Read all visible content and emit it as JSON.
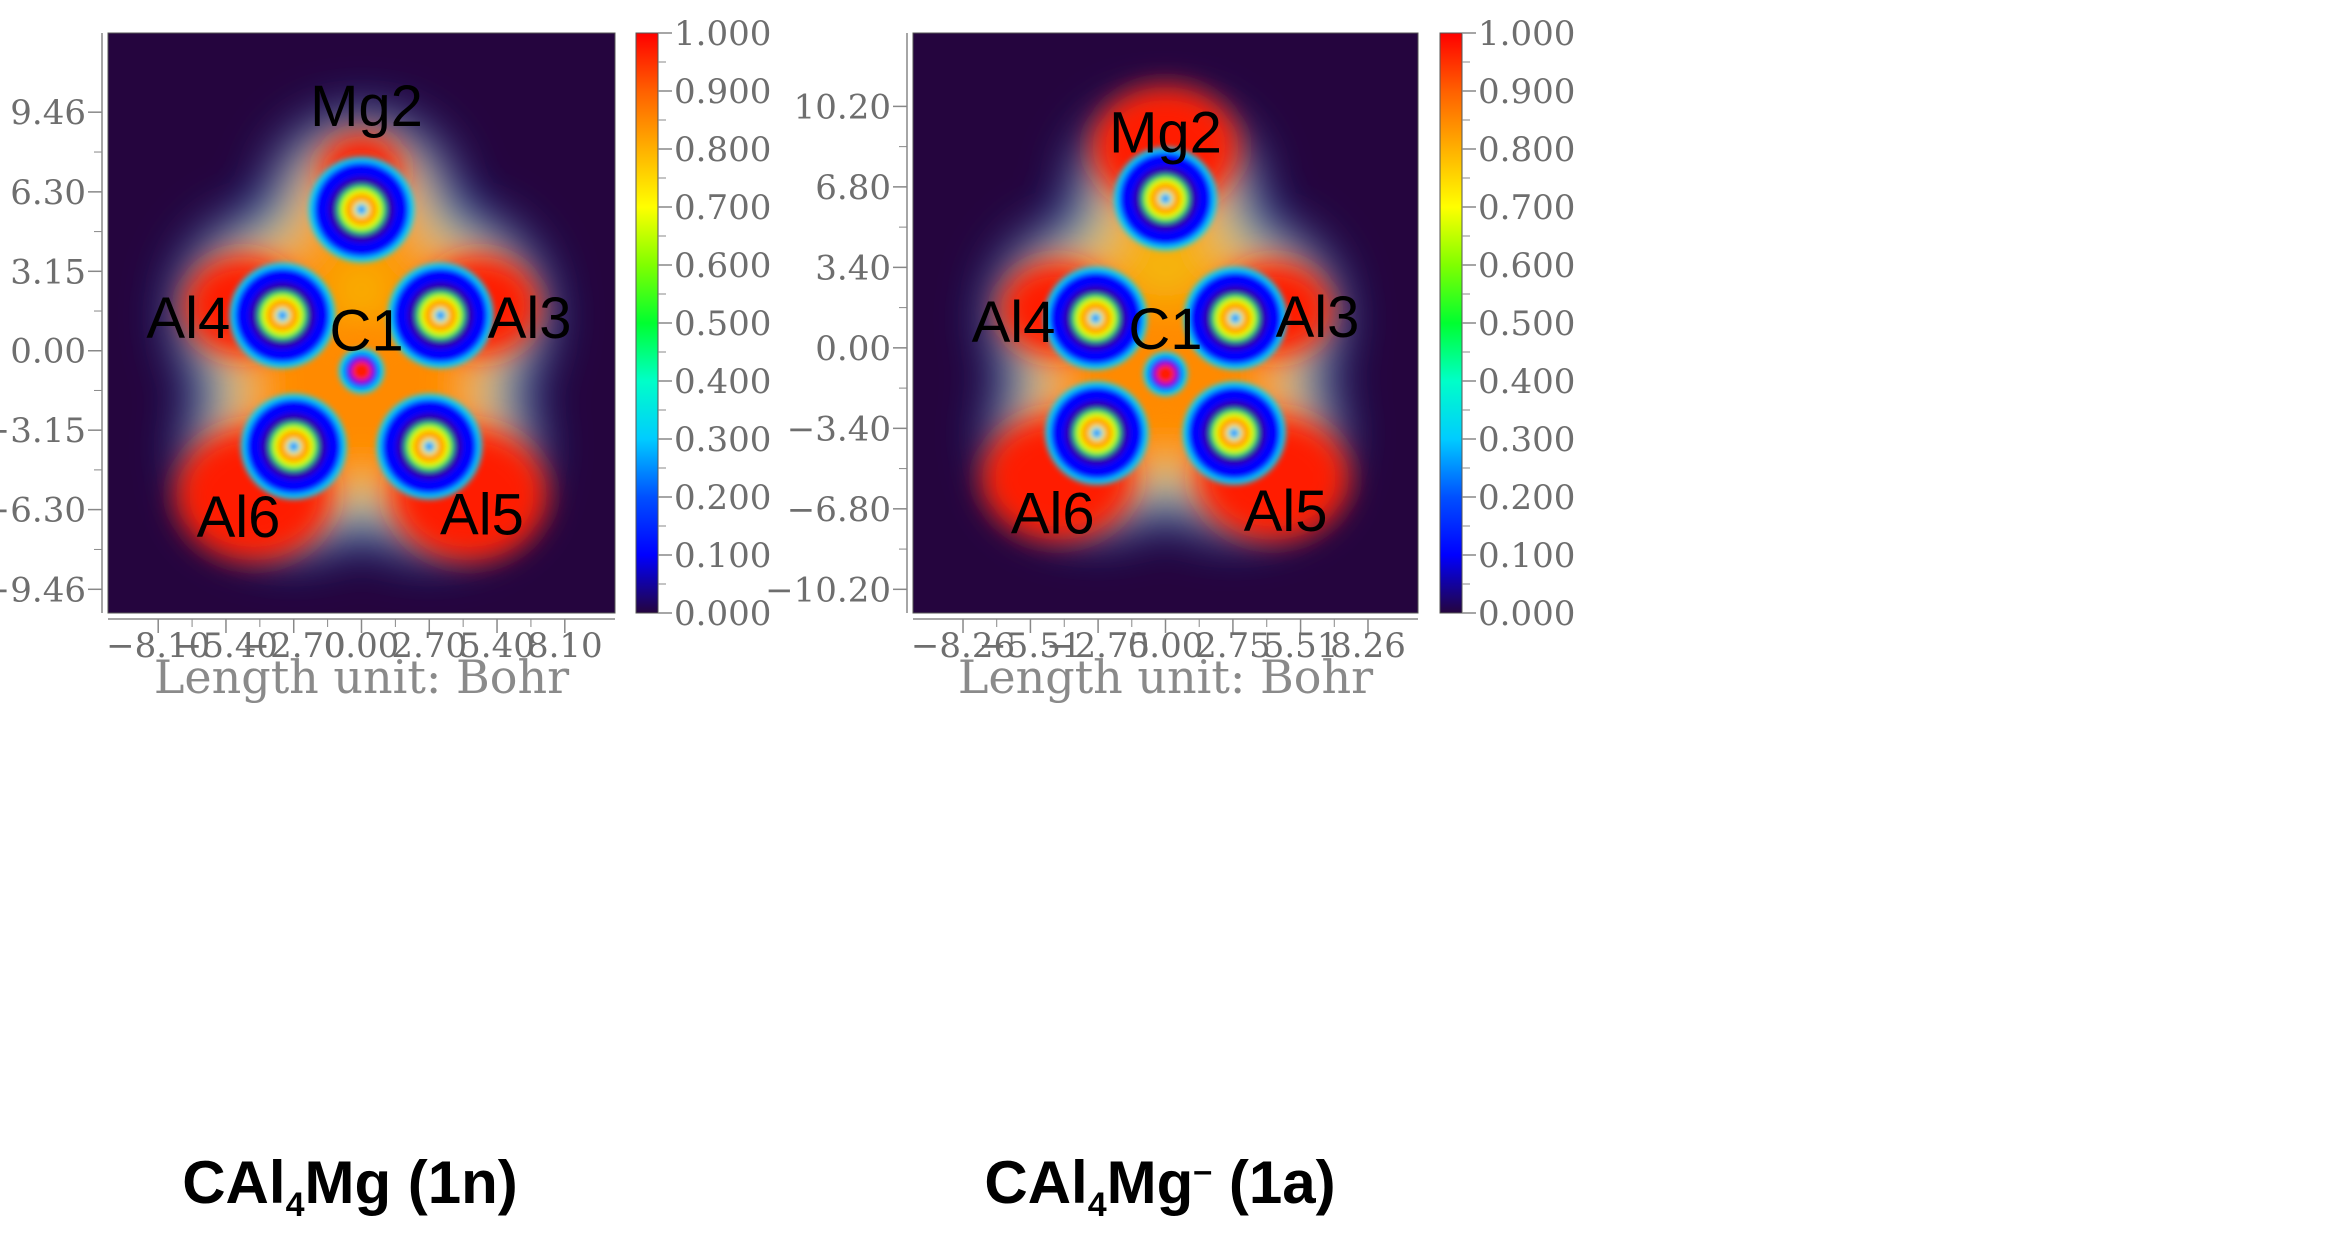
{
  "chart_data": [
    {
      "type": "heatmap",
      "caption": {
        "formula": "CAl",
        "sub": "4",
        "tail": "Mg",
        "sup": "",
        "label": " (1n)"
      },
      "xlabel": "Length unit: Bohr",
      "x_ticks": [
        "-8.10",
        "-5.40",
        "-2.70",
        "0.00",
        "2.70",
        "5.40",
        "8.10"
      ],
      "x_tick_values": [
        -8.1,
        -5.4,
        -2.7,
        0.0,
        2.7,
        5.4,
        8.1
      ],
      "xlim": [
        -10.1,
        10.1
      ],
      "y_ticks": [
        "9.46",
        "6.30",
        "3.15",
        "0.00",
        "-3.15",
        "-6.30",
        "-9.46"
      ],
      "y_tick_values": [
        9.46,
        6.3,
        3.15,
        0.0,
        -3.15,
        -6.3,
        -9.46
      ],
      "ylim": [
        -10.4,
        12.6
      ],
      "colorbar": {
        "ticks": [
          "1.000",
          "0.900",
          "0.800",
          "0.700",
          "0.600",
          "0.500",
          "0.400",
          "0.300",
          "0.200",
          "0.100",
          "0.000"
        ],
        "range": [
          0,
          1
        ]
      },
      "atoms": [
        {
          "label": "Mg2",
          "x": 0.0,
          "y": 5.6,
          "lx": 0.2,
          "ly": 9.7,
          "core": 0.5
        },
        {
          "label": "Al4",
          "x": -3.15,
          "y": 1.4,
          "lx": -6.9,
          "ly": 1.3,
          "core": 0.45
        },
        {
          "label": "Al3",
          "x": 3.15,
          "y": 1.4,
          "lx": 6.7,
          "ly": 1.3,
          "core": 0.45
        },
        {
          "label": "C1",
          "x": 0.0,
          "y": -0.8,
          "lx": 0.2,
          "ly": 0.8,
          "core": 0.95
        },
        {
          "label": "Al6",
          "x": -2.7,
          "y": -3.8,
          "lx": -4.9,
          "ly": -6.6,
          "core": 0.45
        },
        {
          "label": "Al5",
          "x": 2.7,
          "y": -3.8,
          "lx": 4.8,
          "ly": -6.5,
          "core": 0.45
        }
      ]
    },
    {
      "type": "heatmap",
      "caption": {
        "formula": "CAl",
        "sub": "4",
        "tail": "Mg",
        "sup": "–",
        "label": " (1a)"
      },
      "xlabel": "Length unit: Bohr",
      "x_ticks": [
        "-8.26",
        "-5.51",
        "-2.75",
        "0.00",
        "2.75",
        "5.51",
        "8.26"
      ],
      "x_tick_values": [
        -8.26,
        -5.51,
        -2.75,
        0.0,
        2.75,
        5.51,
        8.26
      ],
      "xlim": [
        -10.3,
        10.3
      ],
      "y_ticks": [
        "10.20",
        "6.80",
        "3.40",
        "0.00",
        "-3.40",
        "-6.80",
        "-10.20"
      ],
      "y_tick_values": [
        10.2,
        6.8,
        3.4,
        0.0,
        -3.4,
        -6.8,
        -10.2
      ],
      "ylim": [
        -11.2,
        13.3
      ],
      "colorbar": {
        "ticks": [
          "1.000",
          "0.900",
          "0.800",
          "0.700",
          "0.600",
          "0.500",
          "0.400",
          "0.300",
          "0.200",
          "0.100",
          "0.000"
        ],
        "range": [
          0,
          1
        ]
      },
      "atoms": [
        {
          "label": "Mg2",
          "x": 0.0,
          "y": 6.3,
          "lx": 0.0,
          "ly": 9.1,
          "core": 0.5
        },
        {
          "label": "Al4",
          "x": -2.85,
          "y": 1.25,
          "lx": -6.2,
          "ly": 1.1,
          "core": 0.45
        },
        {
          "label": "Al3",
          "x": 2.85,
          "y": 1.25,
          "lx": 6.2,
          "ly": 1.3,
          "core": 0.45
        },
        {
          "label": "C1",
          "x": 0.0,
          "y": -1.1,
          "lx": 0.0,
          "ly": 0.8,
          "core": 0.95
        },
        {
          "label": "Al6",
          "x": -2.8,
          "y": -3.6,
          "lx": -4.6,
          "ly": -7.0,
          "core": 0.45
        },
        {
          "label": "Al5",
          "x": 2.8,
          "y": -3.6,
          "lx": 4.9,
          "ly": -6.9,
          "core": 0.45
        }
      ]
    }
  ]
}
